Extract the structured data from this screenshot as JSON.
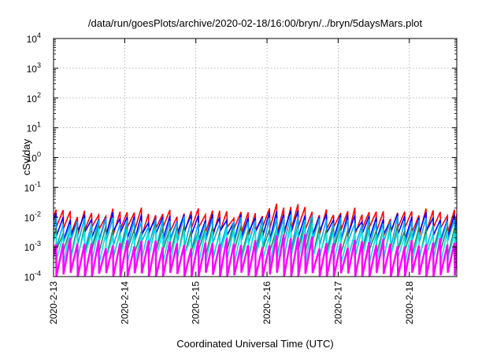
{
  "chart_data": {
    "type": "line",
    "title": "/data/run/goesPlots/archive/2020-02-18/16:00/bryn/../bryn/5daysMars.plot",
    "xlabel": "Coordinated Universal Time (UTC)",
    "ylabel": "cSv/day",
    "y_scale": "log",
    "ylim": [
      0.0001,
      10000
    ],
    "xlim": [
      "2020-02-13 00:00",
      "2020-02-18 16:00"
    ],
    "x_ticks": [
      "2020-2-13",
      "2020-2-14",
      "2020-2-15",
      "2020-2-16",
      "2020-2-17",
      "2020-2-18"
    ],
    "y_ticks": [
      {
        "base": "10",
        "exp": "-4"
      },
      {
        "base": "10",
        "exp": "-3"
      },
      {
        "base": "10",
        "exp": "-2"
      },
      {
        "base": "10",
        "exp": "-1"
      },
      {
        "base": "10",
        "exp": "0"
      },
      {
        "base": "10",
        "exp": "1"
      },
      {
        "base": "10",
        "exp": "2"
      },
      {
        "base": "10",
        "exp": "3"
      },
      {
        "base": "10",
        "exp": "4"
      }
    ],
    "grid": true,
    "period_hours": 2.4,
    "series": [
      {
        "color": "#ff0000",
        "low": 0.0035,
        "high": 0.013,
        "high_late": 0.016,
        "width": 1.6
      },
      {
        "color": "#0000ff",
        "low": 0.0025,
        "high": 0.009,
        "high_late": 0.011,
        "width": 1.6
      },
      {
        "color": "#00aaff",
        "low": 0.0012,
        "high": 0.007,
        "high_late": 0.008,
        "width": 1.6
      },
      {
        "color": "#2e8b57",
        "low": 0.0006,
        "high": 0.004,
        "high_late": 0.0045,
        "width": 1.6
      },
      {
        "color": "#00e5e5",
        "low": 0.0004,
        "high": 0.003,
        "high_late": 0.0035,
        "width": 1.6
      },
      {
        "color": "#ff00ff",
        "low": 0.0001,
        "high": 0.0012,
        "high_late": 0.0015,
        "width": 2.4
      }
    ]
  }
}
